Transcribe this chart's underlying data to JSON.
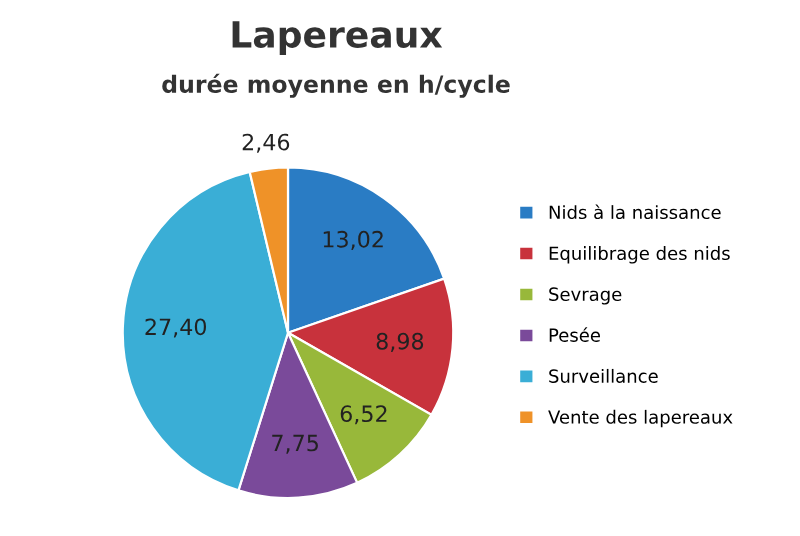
{
  "chart_data": {
    "type": "pie",
    "title": "Lapereaux",
    "subtitle": "durée moyenne en h/cycle",
    "categories": [
      "Nids à la naissance",
      "Equilibrage des nids",
      "Sevrage",
      "Pesée",
      "Surveillance",
      "Vente des lapereaux"
    ],
    "values": [
      13.02,
      8.98,
      6.52,
      7.75,
      27.4,
      2.46
    ],
    "value_labels": [
      "13,02",
      "8,98",
      "6,52",
      "7,75",
      "27,40",
      "2,46"
    ],
    "colors": [
      "#2a7cc4",
      "#c8323c",
      "#98b83a",
      "#7a4a9a",
      "#3aaed6",
      "#ef9228"
    ],
    "legend": "right"
  }
}
